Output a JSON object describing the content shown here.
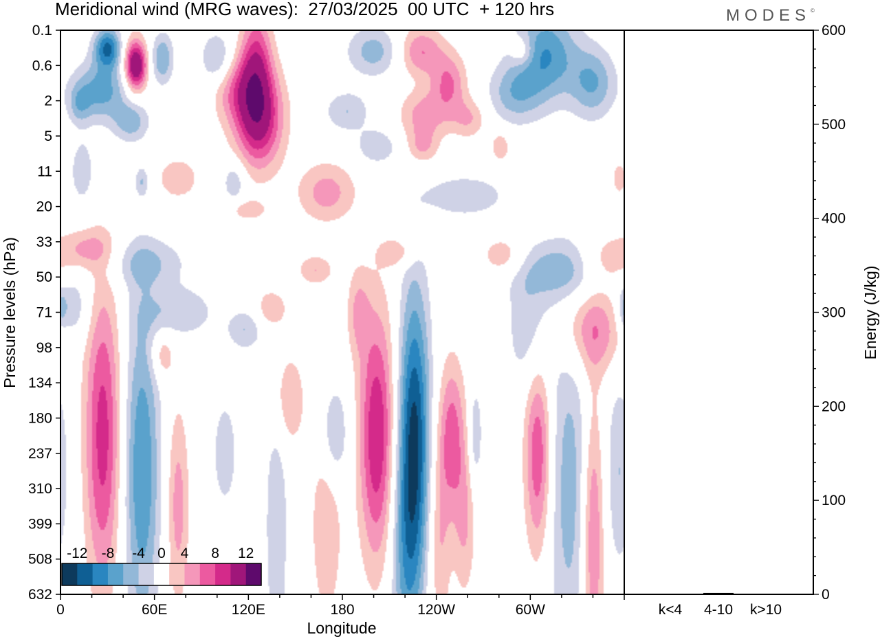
{
  "title": "Meridional wind (MRG waves):  27/03/2025  00 UTC  + 120 hrs",
  "logo": "MODES",
  "logo_mark": "©",
  "chart_data": [
    {
      "type": "heatmap",
      "title": "Meridional wind (MRG waves):  27/03/2025  00 UTC  + 120 hrs",
      "xlabel": "Longitude",
      "ylabel": "Pressure levels (hPa)",
      "x_tick_labels": [
        "0",
        "60E",
        "120E",
        "180",
        "120W",
        "60W"
      ],
      "y_tick_labels": [
        "0.1",
        "0.6",
        "2",
        "5",
        "11",
        "20",
        "33",
        "50",
        "71",
        "98",
        "134",
        "180",
        "237",
        "310",
        "399",
        "508",
        "632"
      ],
      "colorbar": {
        "labels": [
          "-12",
          "-8",
          "-4",
          "0",
          "4",
          "8",
          "12"
        ],
        "levels": [
          -14,
          -12,
          -10,
          -8,
          -6,
          -4,
          -2,
          2,
          4,
          6,
          8,
          10,
          12,
          14
        ],
        "colors": [
          "#0d3a5c",
          "#0f5f94",
          "#2a86c0",
          "#5aa2cc",
          "#93b8d8",
          "#cfd2e6",
          "#ffffff",
          "#f9c6c2",
          "#f597ba",
          "#ec5aa0",
          "#d42a8a",
          "#a0167a",
          "#5e0a6c"
        ]
      },
      "features": [
        {
          "lon": 48,
          "lev": 1,
          "value": 14,
          "sigma_lon": 5,
          "sigma_lev": 0.5
        },
        {
          "lon": 30,
          "lev": 0.5,
          "value": -10,
          "sigma_lon": 6,
          "sigma_lev": 0.4
        },
        {
          "lon": 65,
          "lev": 0.8,
          "value": -6,
          "sigma_lon": 5,
          "sigma_lev": 0.5
        },
        {
          "lon": 100,
          "lev": 0.8,
          "value": -5,
          "sigma_lon": 7,
          "sigma_lev": 0.5
        },
        {
          "lon": 125,
          "lev": 1.0,
          "value": 8,
          "sigma_lon": 7,
          "sigma_lev": 1.2
        },
        {
          "lon": 112,
          "lev": 1.7,
          "value": 5,
          "sigma_lon": 10,
          "sigma_lev": 0.7
        },
        {
          "lon": 127,
          "lev": 2.5,
          "value": 10,
          "sigma_lon": 11,
          "sigma_lev": 1.0
        },
        {
          "lon": 26,
          "lev": 1.7,
          "value": -7,
          "sigma_lon": 12,
          "sigma_lev": 0.6
        },
        {
          "lon": 45,
          "lev": 2.6,
          "value": -5,
          "sigma_lon": 8,
          "sigma_lev": 0.4
        },
        {
          "lon": 12,
          "lev": 2.1,
          "value": -4,
          "sigma_lon": 5,
          "sigma_lev": 0.4
        },
        {
          "lon": 200,
          "lev": 0.6,
          "value": -5,
          "sigma_lon": 12,
          "sigma_lev": 0.5
        },
        {
          "lon": 183,
          "lev": 2.3,
          "value": -4,
          "sigma_lon": 10,
          "sigma_lev": 0.4
        },
        {
          "lon": 230,
          "lev": 0.6,
          "value": 6,
          "sigma_lon": 10,
          "sigma_lev": 0.5
        },
        {
          "lon": 248,
          "lev": 1.5,
          "value": 6,
          "sigma_lon": 8,
          "sigma_lev": 0.6
        },
        {
          "lon": 232,
          "lev": 2.4,
          "value": 5,
          "sigma_lon": 11,
          "sigma_lev": 0.5
        },
        {
          "lon": 261,
          "lev": 2.5,
          "value": 4,
          "sigma_lon": 8,
          "sigma_lev": 0.4
        },
        {
          "lon": 295,
          "lev": 0.6,
          "value": 4,
          "sigma_lon": 5,
          "sigma_lev": 0.3
        },
        {
          "lon": 310,
          "lev": 0.7,
          "value": -8,
          "sigma_lon": 14,
          "sigma_lev": 0.9
        },
        {
          "lon": 290,
          "lev": 1.8,
          "value": -5,
          "sigma_lon": 12,
          "sigma_lev": 0.6
        },
        {
          "lon": 340,
          "lev": 1.5,
          "value": -6,
          "sigma_lon": 10,
          "sigma_lev": 0.7
        },
        {
          "lon": 202,
          "lev": 3.3,
          "value": -4,
          "sigma_lon": 9,
          "sigma_lev": 0.35
        },
        {
          "lon": 231,
          "lev": 3.3,
          "value": 4,
          "sigma_lon": 7,
          "sigma_lev": 0.35
        },
        {
          "lon": 281,
          "lev": 3.3,
          "value": 4,
          "sigma_lon": 4,
          "sigma_lev": 0.3
        },
        {
          "lon": 14,
          "lev": 4.0,
          "value": -4,
          "sigma_lon": 5,
          "sigma_lev": 0.6
        },
        {
          "lon": 52,
          "lev": 4.3,
          "value": -4,
          "sigma_lon": 3,
          "sigma_lev": 0.3
        },
        {
          "lon": 75,
          "lev": 4.2,
          "value": 4,
          "sigma_lon": 9,
          "sigma_lev": 0.4
        },
        {
          "lon": 111,
          "lev": 4.3,
          "value": -4,
          "sigma_lon": 5,
          "sigma_lev": 0.4
        },
        {
          "lon": 170,
          "lev": 4.6,
          "value": 5,
          "sigma_lon": 13,
          "sigma_lev": 0.6
        },
        {
          "lon": 258,
          "lev": 4.7,
          "value": -4,
          "sigma_lon": 18,
          "sigma_lev": 0.4
        },
        {
          "lon": 357,
          "lev": 4.2,
          "value": 4,
          "sigma_lon": 3,
          "sigma_lev": 0.3
        },
        {
          "lon": 120,
          "lev": 5.1,
          "value": 3.5,
          "sigma_lon": 8,
          "sigma_lev": 0.2
        },
        {
          "lon": 18,
          "lev": 6.2,
          "value": 4,
          "sigma_lon": 12,
          "sigma_lev": 0.4
        },
        {
          "lon": 55,
          "lev": 6.6,
          "value": -4,
          "sigma_lon": 18,
          "sigma_lev": 0.5
        },
        {
          "lon": 163,
          "lev": 6.8,
          "value": 4,
          "sigma_lon": 8,
          "sigma_lev": 0.3
        },
        {
          "lon": 216,
          "lev": 6.3,
          "value": 4,
          "sigma_lon": 8,
          "sigma_lev": 0.3
        },
        {
          "lon": 283,
          "lev": 6.4,
          "value": 4,
          "sigma_lon": 10,
          "sigma_lev": 0.4
        },
        {
          "lon": 320,
          "lev": 6.8,
          "value": -5,
          "sigma_lon": 22,
          "sigma_lev": 0.6
        },
        {
          "lon": 350,
          "lev": 6.5,
          "value": 4,
          "sigma_lon": 14,
          "sigma_lev": 0.5
        },
        {
          "lon": 8,
          "lev": 7.9,
          "value": -4,
          "sigma_lon": 8,
          "sigma_lev": 0.7
        },
        {
          "lon": 75,
          "lev": 8.0,
          "value": -4,
          "sigma_lon": 16,
          "sigma_lev": 0.5
        },
        {
          "lon": 118,
          "lev": 8.5,
          "value": -4,
          "sigma_lon": 8,
          "sigma_lev": 0.4
        },
        {
          "lon": 135,
          "lev": 7.9,
          "value": 4,
          "sigma_lon": 7,
          "sigma_lev": 0.4
        },
        {
          "lon": 190,
          "lev": 8.0,
          "value": 4,
          "sigma_lon": 5,
          "sigma_lev": 0.9
        },
        {
          "lon": 300,
          "lev": 8.5,
          "value": -4,
          "sigma_lon": 10,
          "sigma_lev": 1.2
        },
        {
          "lon": 340,
          "lev": 8.5,
          "value": 6,
          "sigma_lon": 15,
          "sigma_lev": 0.9
        },
        {
          "lon": 360,
          "lev": 7.9,
          "value": -4,
          "sigma_lon": 3,
          "sigma_lev": 0.4
        },
        {
          "lon": 65,
          "lev": 9.2,
          "value": 4,
          "sigma_lon": 5,
          "sigma_lev": 0.5
        },
        {
          "lon": 27,
          "lev": 11.5,
          "value": 9,
          "sigma_lon": 8,
          "sigma_lev": 3.0
        },
        {
          "lon": 52,
          "lev": 12.5,
          "value": -8,
          "sigma_lon": 8,
          "sigma_lev": 3.2
        },
        {
          "lon": 75,
          "lev": 13.5,
          "value": 5,
          "sigma_lon": 5,
          "sigma_lev": 2.0
        },
        {
          "lon": 105,
          "lev": 12.0,
          "value": -4,
          "sigma_lon": 5,
          "sigma_lev": 1.0
        },
        {
          "lon": 138,
          "lev": 14.0,
          "value": -4,
          "sigma_lon": 5,
          "sigma_lev": 2.8
        },
        {
          "lon": 145,
          "lev": 10.5,
          "value": 4,
          "sigma_lon": 8,
          "sigma_lev": 1.0
        },
        {
          "lon": 170,
          "lev": 14.0,
          "value": 4,
          "sigma_lon": 7,
          "sigma_lev": 2.0
        },
        {
          "lon": 175,
          "lev": 11.5,
          "value": -5,
          "sigma_lon": 6,
          "sigma_lev": 1.0
        },
        {
          "lon": 202,
          "lev": 11.5,
          "value": 10,
          "sigma_lon": 8,
          "sigma_lev": 2.5
        },
        {
          "lon": 226,
          "lev": 11.5,
          "value": -12,
          "sigma_lon": 7,
          "sigma_lev": 3.0
        },
        {
          "lon": 250,
          "lev": 11.5,
          "value": 7,
          "sigma_lon": 6,
          "sigma_lev": 1.5
        },
        {
          "lon": 242,
          "lev": 14.5,
          "value": 4,
          "sigma_lon": 5,
          "sigma_lev": 2.0
        },
        {
          "lon": 220,
          "lev": 15.0,
          "value": -5,
          "sigma_lon": 7,
          "sigma_lev": 2.5
        },
        {
          "lon": 265,
          "lev": 11.5,
          "value": -4,
          "sigma_lon": 3,
          "sigma_lev": 1.0
        },
        {
          "lon": 258,
          "lev": 14.0,
          "value": 4,
          "sigma_lon": 5,
          "sigma_lev": 1.5
        },
        {
          "lon": 305,
          "lev": 12.0,
          "value": 8,
          "sigma_lon": 6,
          "sigma_lev": 2.0
        },
        {
          "lon": 325,
          "lev": 13.0,
          "value": -5,
          "sigma_lon": 10,
          "sigma_lev": 3.5
        },
        {
          "lon": 340,
          "lev": 14.3,
          "value": 7,
          "sigma_lon": 5,
          "sigma_lev": 2.8
        },
        {
          "lon": 357,
          "lev": 12.5,
          "value": -4,
          "sigma_lon": 6,
          "sigma_lev": 2.0
        }
      ],
      "energy_axis": {
        "label": "Energy (J/kg)",
        "tick_labels": [
          "0",
          "100",
          "200",
          "300",
          "400",
          "500",
          "600"
        ],
        "ylim": [
          0,
          600
        ],
        "categories": [
          "k<4",
          "4-10",
          "k>10"
        ],
        "values": [
          0.5,
          1.5,
          0.5
        ]
      }
    }
  ]
}
